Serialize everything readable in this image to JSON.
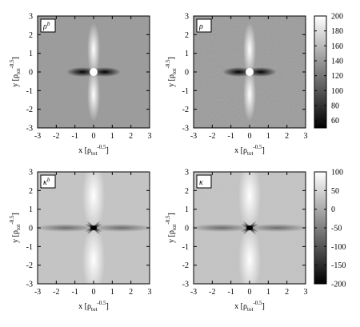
{
  "chart_data": [
    {
      "type": "heatmap",
      "label": [
        "ρ",
        "b"
      ],
      "xlabel": [
        "x [ρ",
        "tot",
        "-0.5",
        "]"
      ],
      "ylabel": [
        "y [ρ",
        "tot",
        "-0.5",
        "]"
      ],
      "xlim": [
        -3,
        3
      ],
      "ylim": [
        -3,
        3
      ],
      "xticks": [
        -3,
        -2,
        -1,
        0,
        1,
        2,
        3
      ],
      "yticks": [
        -3,
        -2,
        -1,
        0,
        1,
        2,
        3
      ]
    },
    {
      "type": "heatmap",
      "label": [
        "ρ"
      ],
      "xlabel": [
        "x [ρ",
        "tot",
        "-0.5",
        "]"
      ],
      "ylabel": [
        "y [ρ",
        "tot",
        "-0.5",
        "]"
      ],
      "xlim": [
        -3,
        3
      ],
      "ylim": [
        -3,
        3
      ],
      "xticks": [
        -3,
        -2,
        -1,
        0,
        1,
        2,
        3
      ],
      "yticks": [
        -3,
        -2,
        -1,
        0,
        1,
        2,
        3
      ],
      "colorbar": {
        "lim": [
          50,
          200
        ],
        "ticks": [
          60,
          80,
          100,
          120,
          140,
          160,
          180,
          200
        ]
      }
    },
    {
      "type": "heatmap",
      "label": [
        "κ",
        "b"
      ],
      "xlabel": [
        "x [ρ",
        "tot",
        "-0.5",
        "]"
      ],
      "ylabel": [
        "y [ρ",
        "tot",
        "-0.5",
        "]"
      ],
      "xlim": [
        -3,
        3
      ],
      "ylim": [
        -3,
        3
      ],
      "xticks": [
        -3,
        -2,
        -1,
        0,
        1,
        2,
        3
      ],
      "yticks": [
        -3,
        -2,
        -1,
        0,
        1,
        2,
        3
      ]
    },
    {
      "type": "heatmap",
      "label": [
        "κ"
      ],
      "xlabel": [
        "x [ρ",
        "tot",
        "-0.5",
        "]"
      ],
      "ylabel": [
        "y [ρ",
        "tot",
        "-0.5",
        "]"
      ],
      "xlim": [
        -3,
        3
      ],
      "ylim": [
        -3,
        3
      ],
      "xticks": [
        -3,
        -2,
        -1,
        0,
        1,
        2,
        3
      ],
      "yticks": [
        -3,
        -2,
        -1,
        0,
        1,
        2,
        3
      ],
      "colorbar": {
        "lim": [
          -200,
          100
        ],
        "ticks": [
          -200,
          -150,
          -100,
          -50,
          0,
          50,
          100
        ]
      }
    }
  ]
}
